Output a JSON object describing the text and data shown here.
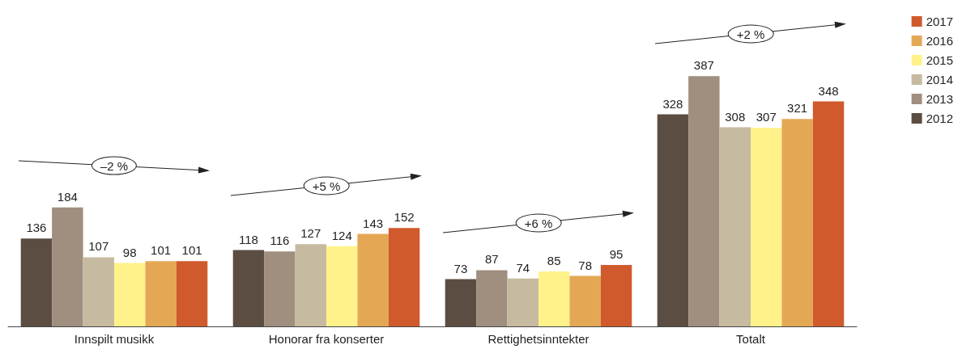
{
  "chart_data": {
    "type": "bar",
    "categories": [
      "Innspilt musikk",
      "Honorar fra konserter",
      "Rettighetsinntekter",
      "Totalt"
    ],
    "series": [
      {
        "name": "2012",
        "color": "#5c4d43",
        "values": [
          136,
          118,
          73,
          328
        ]
      },
      {
        "name": "2013",
        "color": "#a08e7e",
        "values": [
          184,
          116,
          87,
          387
        ]
      },
      {
        "name": "2014",
        "color": "#c6baa0",
        "values": [
          107,
          127,
          74,
          308
        ]
      },
      {
        "name": "2015",
        "color": "#fff28a",
        "values": [
          98,
          124,
          85,
          307
        ]
      },
      {
        "name": "2016",
        "color": "#e4a855",
        "values": [
          101,
          143,
          78,
          321
        ]
      },
      {
        "name": "2017",
        "color": "#d05a2c",
        "values": [
          101,
          152,
          95,
          348
        ]
      }
    ],
    "annotations": [
      "–2 %",
      "+5 %",
      "+6 %",
      "+2 %"
    ],
    "data_labels": true,
    "legend": "right"
  }
}
